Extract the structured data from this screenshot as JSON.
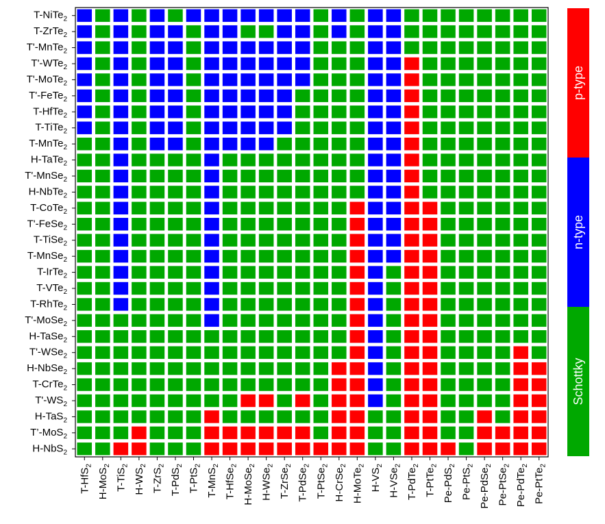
{
  "chart_data": {
    "type": "heatmap",
    "rows": [
      [
        "T-NiTe",
        "2"
      ],
      [
        "T-ZrTe",
        "2"
      ],
      [
        "T'-MnTe",
        "2"
      ],
      [
        "T'-WTe",
        "2"
      ],
      [
        "T'-MoTe",
        "2"
      ],
      [
        "T'-FeTe",
        "2"
      ],
      [
        "T-HfTe",
        "2"
      ],
      [
        "T-TiTe",
        "2"
      ],
      [
        "T-MnTe",
        "2"
      ],
      [
        "H-TaTe",
        "2"
      ],
      [
        "T'-MnSe",
        "2"
      ],
      [
        "H-NbTe",
        "2"
      ],
      [
        "T-CoTe",
        "2"
      ],
      [
        "T'-FeSe",
        "2"
      ],
      [
        "T-TiSe",
        "2"
      ],
      [
        "T-MnSe",
        "2"
      ],
      [
        "T-IrTe",
        "2"
      ],
      [
        "T-VTe",
        "2"
      ],
      [
        "T-RhTe",
        "2"
      ],
      [
        "T'-MoSe",
        "2"
      ],
      [
        "H-TaSe",
        "2"
      ],
      [
        "T'-WSe",
        "2"
      ],
      [
        "H-NbSe",
        "2"
      ],
      [
        "T-CrTe",
        "2"
      ],
      [
        "T'-WS",
        "2"
      ],
      [
        "H-TaS",
        "2"
      ],
      [
        "T’-MoS",
        "2"
      ],
      [
        "H-NbS",
        "2"
      ]
    ],
    "columns": [
      [
        "T-HfS",
        "2"
      ],
      [
        "H-MoS",
        "2"
      ],
      [
        "T-TiS",
        "2"
      ],
      [
        "H-WS",
        "2"
      ],
      [
        "T-ZrS",
        "2"
      ],
      [
        "T-PdS",
        "2"
      ],
      [
        "T-PtS",
        "2"
      ],
      [
        "T-MnS",
        "2"
      ],
      [
        "T-HfSe",
        "2"
      ],
      [
        "H-MoSe",
        "2"
      ],
      [
        "H-WSe",
        "2"
      ],
      [
        "T-ZrSe",
        "2"
      ],
      [
        "T-PdSe",
        "2"
      ],
      [
        "T-PtSe",
        "2"
      ],
      [
        "H-CrSe",
        "2"
      ],
      [
        "H-MoTe",
        "2"
      ],
      [
        "H-VS",
        "2"
      ],
      [
        "H-VSe",
        "2"
      ],
      [
        "T-PdTe",
        "2"
      ],
      [
        "T-PtTe",
        "2"
      ],
      [
        "Pe-PdS",
        "2"
      ],
      [
        "Pe-PtS",
        "2"
      ],
      [
        "Pe-PdSe",
        "2"
      ],
      [
        "Pe-PtSe",
        "2"
      ],
      [
        "Pe-PdTe",
        "2"
      ],
      [
        "Pe-PtTe",
        "2"
      ]
    ],
    "categories": {
      "S": "Schottky",
      "N": "n-type",
      "P": "p-type"
    },
    "colors": {
      "S": "#00a800",
      "N": "#0000ff",
      "P": "#ff0000"
    },
    "legend": {
      "placement": "right",
      "order_top_to_bottom": [
        "P",
        "N",
        "S"
      ],
      "labels": {
        "P": "p-type",
        "N": "n-type",
        "S": "Schottky"
      }
    },
    "cells": [
      "NSNSNSNNNNNNNSNSNNSSSSSSSS",
      "NSNSNNSNNSSNNSNSNNSSSSSSSS",
      "NSNSNNSNNNNNNSSSNNSSSSSSSS",
      "NSNSNNSNNNNNNSSSNNPSSSSSSS",
      "NSNSNNSNNNNNNSSSNNPSSSSSSS",
      "NSNSNNSNNNNNSSSSNNPSSSSSSS",
      "NSNSNNSNNNNNSSSSNNPSSSSSSS",
      "NSNSNNSNNNNNSSSSNNPSSSSSSS",
      "SSNSNNSNNNNSSSSSNNPSSSSSSS",
      "SSNSSSSNSSSSSSSSNNPSSSSSSS",
      "SSNSSSSNSSSSSSSSNNPSSSSSSS",
      "SSNSSSSNSSSSSSSSNNPSSSSSSS",
      "SSNSSSSNSSSSSSSPNNPPSSSSSS",
      "SSNSSSSNSSSSSSSPNNPPSSSSSS",
      "SSNSSSSNSSSSSSSPNNPPSSSSSS",
      "SSNSSSSNSSSSSSSPNNPPSSSSSS",
      "SSNSSSSNSSSSSSSPNSPPSSSSSS",
      "SSNSSSSNSSSSSSSPNSPPSSSSSS",
      "SSNSSSSNSSSSSSSPNSPPSSSSSS",
      "SSSSSSSNSSSSSSSPNSPPSSSSSS",
      "SSSSSSSSSSSSSSSPNSPPSSSSSS",
      "SSSSSSSSSSSSSSSPNSPPSSSSPS",
      "SSSSSSSSSSSSSSPPNSPPSSSSPP",
      "SSSSSSSSSSSSSSPPNSPPSSSSPP",
      "SSSSSSSSSPPSPSPPNSPPSSSSPP",
      "SSSSSSSPSSSSSSPPSSPPSSPSPP",
      "SSSPSSSPPPPPPSPPSSPPSSPPPP",
      "SSPPSSSPPPPPPPPPSSPPPSPPPP"
    ]
  }
}
